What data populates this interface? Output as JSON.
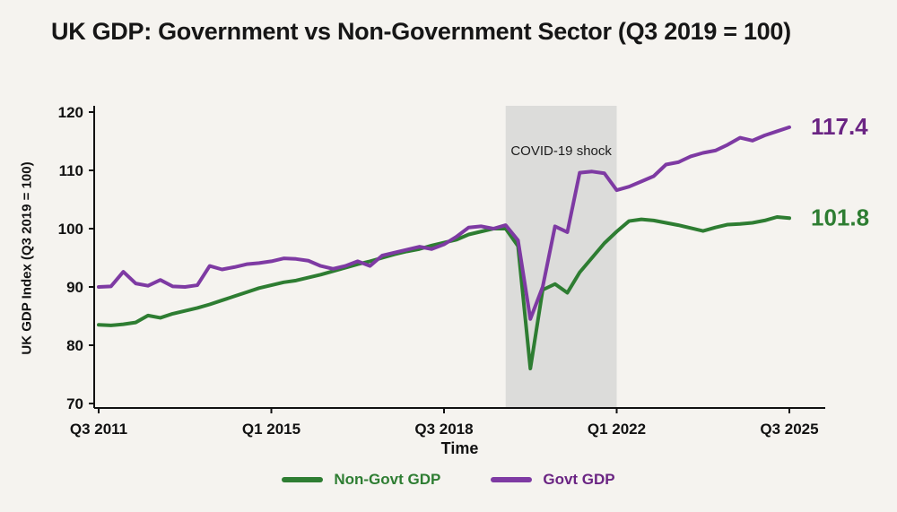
{
  "chart_data": {
    "type": "line",
    "title": "UK GDP: Government vs Non-Government Sector (Q3 2019 = 100)",
    "xlabel": "Time",
    "ylabel": "UK GDP Index (Q3 2019 = 100)",
    "ylim": [
      70,
      120
    ],
    "yticks": [
      120,
      110,
      100,
      90,
      80,
      70
    ],
    "x_start": "Q3 2011",
    "x_end": "Q3 2025",
    "x_frequency": "quarterly",
    "n_points": 57,
    "xtick_labels": [
      "Q3 2011",
      "Q1 2015",
      "Q3 2018",
      "Q1 2022",
      "Q3 2025"
    ],
    "xtick_indices": [
      0,
      14,
      28,
      42,
      56
    ],
    "grid": false,
    "legend_position": "bottom",
    "background_color": "#f5f3ef",
    "annotation": {
      "label": "COVID-19 shock",
      "band_start_quarter": "Q4 2019",
      "band_end_quarter": "Q1 2022",
      "band_start_index": 33,
      "band_end_index": 42,
      "band_color": "#dcdcda"
    },
    "series": [
      {
        "name": "Non-Govt GDP",
        "color": "#2e7d32",
        "label_color": "#2e7d32",
        "end_label": "101.8",
        "values": [
          83.5,
          83.4,
          83.6,
          83.9,
          85.1,
          84.7,
          85.4,
          85.9,
          86.4,
          87.0,
          87.7,
          88.4,
          89.1,
          89.8,
          90.3,
          90.8,
          91.1,
          91.6,
          92.1,
          92.7,
          93.3,
          93.9,
          94.4,
          95.0,
          95.6,
          96.1,
          96.5,
          97.1,
          97.6,
          98.1,
          99.0,
          99.5,
          100.0,
          100.0,
          97.0,
          76.0,
          89.5,
          90.5,
          89.0,
          92.5,
          95.0,
          97.5,
          99.5,
          101.3,
          101.6,
          101.4,
          101.0,
          100.6,
          100.1,
          99.6,
          100.2,
          100.7,
          100.8,
          101.0,
          101.4,
          102.0,
          101.8
        ]
      },
      {
        "name": "Govt GDP",
        "color": "#7e3aa3",
        "label_color": "#6a2483",
        "end_label": "117.4",
        "values": [
          90.0,
          90.1,
          92.6,
          90.6,
          90.2,
          91.2,
          90.1,
          90.0,
          90.3,
          93.6,
          93.0,
          93.4,
          93.9,
          94.1,
          94.4,
          94.9,
          94.8,
          94.5,
          93.6,
          93.1,
          93.6,
          94.4,
          93.6,
          95.4,
          95.9,
          96.4,
          96.9,
          96.5,
          97.3,
          98.6,
          100.2,
          100.4,
          100.0,
          100.6,
          98.0,
          84.5,
          90.0,
          100.4,
          99.4,
          109.6,
          109.8,
          109.5,
          106.6,
          107.2,
          108.1,
          109.0,
          111.0,
          111.4,
          112.4,
          113.0,
          113.4,
          114.4,
          115.6,
          115.1,
          116.0,
          116.7,
          117.4
        ]
      }
    ]
  }
}
